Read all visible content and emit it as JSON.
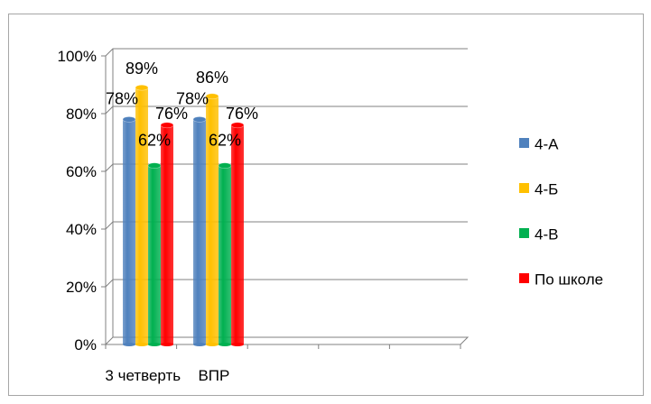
{
  "chart_data": {
    "type": "bar",
    "categories": [
      "3 четверть",
      "ВПР"
    ],
    "series": [
      {
        "name": "4-А",
        "values": [
          78,
          78
        ],
        "labels": [
          "78%",
          "78%"
        ],
        "color": "#4f81bd"
      },
      {
        "name": "4-Б",
        "values": [
          89,
          86
        ],
        "labels": [
          "89%",
          "86%"
        ],
        "color": "#ffc000"
      },
      {
        "name": "4-В",
        "values": [
          62,
          62
        ],
        "labels": [
          "62%",
          "62%"
        ],
        "color": "#00b050"
      },
      {
        "name": "По школе",
        "values": [
          76,
          76
        ],
        "labels": [
          "76%",
          "76%"
        ],
        "color": "#ff0000"
      }
    ],
    "y_ticks": [
      "0%",
      "20%",
      "40%",
      "60%",
      "80%",
      "100%"
    ],
    "ylim": [
      0,
      100
    ],
    "title": "",
    "xlabel": "",
    "ylabel": "",
    "grid": true,
    "legend": "right",
    "style": "3d-cylinder"
  }
}
